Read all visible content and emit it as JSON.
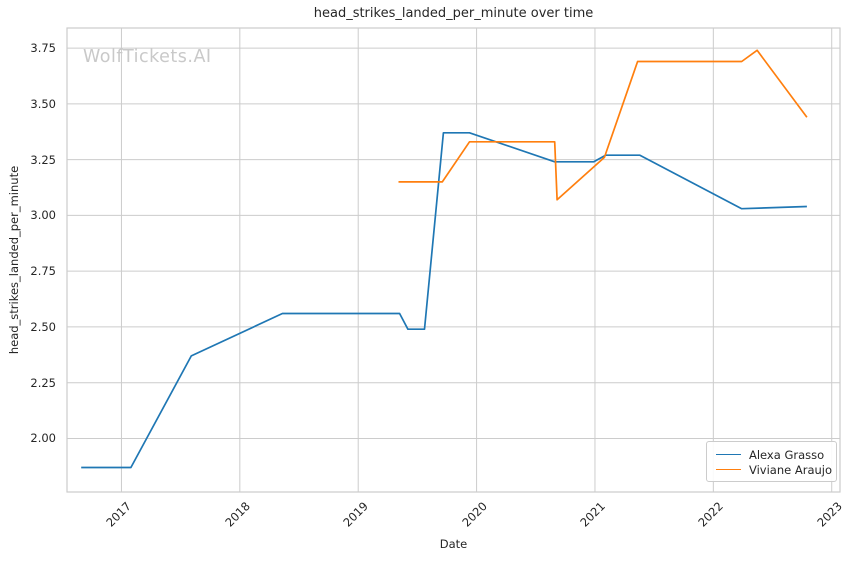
{
  "chart_data": {
    "type": "line",
    "title": "head_strikes_landed_per_minute over time",
    "xlabel": "Date",
    "ylabel": "head_strikes_landed_per_minute",
    "watermark": "WolfTickets.AI",
    "xlim": [
      2016.54,
      2023.07
    ],
    "ylim": [
      1.76,
      3.84
    ],
    "xticks": [
      2017,
      2018,
      2019,
      2020,
      2021,
      2022,
      2023
    ],
    "xtick_labels": [
      "2017",
      "2018",
      "2019",
      "2020",
      "2021",
      "2022",
      "2023"
    ],
    "yticks": [
      2.0,
      2.25,
      2.5,
      2.75,
      3.0,
      3.25,
      3.5,
      3.75
    ],
    "ytick_labels": [
      "2.00",
      "2.25",
      "2.50",
      "2.75",
      "3.00",
      "3.25",
      "3.50",
      "3.75"
    ],
    "grid": true,
    "legend_position": "lower-right",
    "colors": {
      "grid": "#cccccc",
      "spine": "#cccccc",
      "text": "#262626",
      "watermark": "#c9c9c9",
      "background": "#ffffff"
    },
    "series": [
      {
        "name": "Alexa Grasso",
        "color": "#1f77b4",
        "points": [
          [
            2016.66,
            1.87
          ],
          [
            2017.08,
            1.87
          ],
          [
            2017.59,
            2.37
          ],
          [
            2018.36,
            2.56
          ],
          [
            2019.35,
            2.56
          ],
          [
            2019.42,
            2.49
          ],
          [
            2019.56,
            2.49
          ],
          [
            2019.72,
            3.37
          ],
          [
            2019.94,
            3.37
          ],
          [
            2020.66,
            3.24
          ],
          [
            2020.99,
            3.24
          ],
          [
            2021.09,
            3.27
          ],
          [
            2021.38,
            3.27
          ],
          [
            2022.24,
            3.03
          ],
          [
            2022.79,
            3.04
          ]
        ]
      },
      {
        "name": "Viviane Araujo",
        "color": "#ff7f0e",
        "points": [
          [
            2019.34,
            3.15
          ],
          [
            2019.71,
            3.15
          ],
          [
            2019.94,
            3.33
          ],
          [
            2020.66,
            3.33
          ],
          [
            2020.68,
            3.07
          ],
          [
            2021.08,
            3.26
          ],
          [
            2021.36,
            3.69
          ],
          [
            2022.24,
            3.69
          ],
          [
            2022.37,
            3.74
          ],
          [
            2022.79,
            3.44
          ]
        ]
      }
    ]
  }
}
